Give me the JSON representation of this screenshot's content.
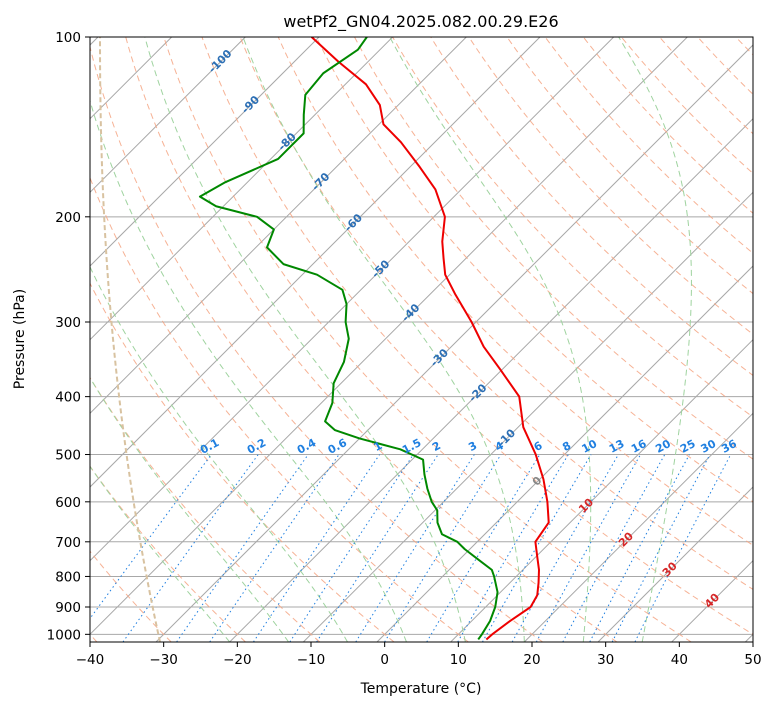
{
  "chart_data": {
    "type": "skew-t",
    "title": "wetPf2_GN04.2025.082.00.29.E26",
    "xlabel": "Temperature (°C)",
    "ylabel": "Pressure (hPa)",
    "xlim": [
      -40,
      50
    ],
    "ylim": [
      1030,
      100
    ],
    "y_scale": "log",
    "grid": true,
    "x_ticks": [
      "−40",
      "−30",
      "−20",
      "−10",
      "0",
      "10",
      "20",
      "30",
      "40",
      "50"
    ],
    "y_ticks": [
      {
        "p": 1000,
        "label": "1000"
      },
      {
        "p": 900,
        "label": "900"
      },
      {
        "p": 800,
        "label": "800"
      },
      {
        "p": 700,
        "label": "700"
      },
      {
        "p": 600,
        "label": "600"
      },
      {
        "p": 500,
        "label": "500"
      },
      {
        "p": 400,
        "label": "400"
      },
      {
        "p": 300,
        "label": "300"
      },
      {
        "p": 200,
        "label": "200"
      },
      {
        "p": 100,
        "label": "100"
      }
    ],
    "isotherm_labels": [
      {
        "t": -100,
        "label": "-100"
      },
      {
        "t": -90,
        "label": "-90"
      },
      {
        "t": -80,
        "label": "-80"
      },
      {
        "t": -70,
        "label": "-70"
      },
      {
        "t": -60,
        "label": "-60"
      },
      {
        "t": -50,
        "label": "-50"
      },
      {
        "t": -40,
        "label": "-40"
      },
      {
        "t": -30,
        "label": "-30"
      },
      {
        "t": -20,
        "label": "-20"
      },
      {
        "t": -10,
        "label": "-10"
      },
      {
        "t": 0,
        "label": "0"
      },
      {
        "t": 10,
        "label": "10"
      },
      {
        "t": 20,
        "label": "20"
      },
      {
        "t": 30,
        "label": "30"
      },
      {
        "t": 40,
        "label": "40"
      }
    ],
    "mixing_ratios": [
      {
        "w": 0.1,
        "label": "0.1"
      },
      {
        "w": 0.2,
        "label": "0.2"
      },
      {
        "w": 0.4,
        "label": "0.4"
      },
      {
        "w": 0.6,
        "label": "0.6"
      },
      {
        "w": 1,
        "label": "1"
      },
      {
        "w": 1.5,
        "label": "1.5"
      },
      {
        "w": 2,
        "label": "2"
      },
      {
        "w": 3,
        "label": "3"
      },
      {
        "w": 4,
        "label": "4"
      },
      {
        "w": 6,
        "label": "6"
      },
      {
        "w": 8,
        "label": "8"
      },
      {
        "w": 10,
        "label": "10"
      },
      {
        "w": 13,
        "label": "13"
      },
      {
        "w": 16,
        "label": "16"
      },
      {
        "w": 20,
        "label": "20"
      },
      {
        "w": 25,
        "label": "25"
      },
      {
        "w": 30,
        "label": "30"
      },
      {
        "w": 36,
        "label": "36"
      }
    ],
    "series": [
      {
        "color": "#ee0000",
        "points": [
          {
            "p": 1020,
            "t": 14.5
          },
          {
            "p": 1000,
            "t": 14.6
          },
          {
            "p": 950,
            "t": 15.2
          },
          {
            "p": 900,
            "t": 16.1
          },
          {
            "p": 860,
            "t": 15.4
          },
          {
            "p": 820,
            "t": 13.9
          },
          {
            "p": 780,
            "t": 12.2
          },
          {
            "p": 740,
            "t": 10.1
          },
          {
            "p": 700,
            "t": 7.9
          },
          {
            "p": 650,
            "t": 7.1
          },
          {
            "p": 600,
            "t": 4.1
          },
          {
            "p": 550,
            "t": 0.5
          },
          {
            "p": 500,
            "t": -3.9
          },
          {
            "p": 450,
            "t": -9.3
          },
          {
            "p": 400,
            "t": -14.0
          },
          {
            "p": 360,
            "t": -20.3
          },
          {
            "p": 330,
            "t": -25.6
          },
          {
            "p": 300,
            "t": -30.6
          },
          {
            "p": 270,
            "t": -36.5
          },
          {
            "p": 250,
            "t": -40.6
          },
          {
            "p": 235,
            "t": -43.0
          },
          {
            "p": 220,
            "t": -45.5
          },
          {
            "p": 200,
            "t": -48.5
          },
          {
            "p": 180,
            "t": -53.5
          },
          {
            "p": 165,
            "t": -58.7
          },
          {
            "p": 150,
            "t": -64.6
          },
          {
            "p": 140,
            "t": -69.4
          },
          {
            "p": 130,
            "t": -72.5
          },
          {
            "p": 120,
            "t": -77.2
          },
          {
            "p": 110,
            "t": -84.0
          },
          {
            "p": 100,
            "t": -91.0
          }
        ]
      },
      {
        "color": "#008800",
        "points": [
          {
            "p": 1020,
            "t": 13.4
          },
          {
            "p": 1000,
            "t": 13.2
          },
          {
            "p": 950,
            "t": 12.5
          },
          {
            "p": 900,
            "t": 11.3
          },
          {
            "p": 850,
            "t": 9.6
          },
          {
            "p": 800,
            "t": 7.0
          },
          {
            "p": 780,
            "t": 5.8
          },
          {
            "p": 750,
            "t": 2.6
          },
          {
            "p": 720,
            "t": -0.7
          },
          {
            "p": 700,
            "t": -2.7
          },
          {
            "p": 680,
            "t": -5.8
          },
          {
            "p": 650,
            "t": -8.0
          },
          {
            "p": 620,
            "t": -9.7
          },
          {
            "p": 600,
            "t": -11.6
          },
          {
            "p": 570,
            "t": -14.0
          },
          {
            "p": 540,
            "t": -16.3
          },
          {
            "p": 510,
            "t": -18.5
          },
          {
            "p": 490,
            "t": -23.0
          },
          {
            "p": 470,
            "t": -30.0
          },
          {
            "p": 455,
            "t": -34.5
          },
          {
            "p": 440,
            "t": -37.0
          },
          {
            "p": 410,
            "t": -38.5
          },
          {
            "p": 380,
            "t": -41.0
          },
          {
            "p": 350,
            "t": -42.5
          },
          {
            "p": 320,
            "t": -45.0
          },
          {
            "p": 300,
            "t": -47.7
          },
          {
            "p": 280,
            "t": -50.0
          },
          {
            "p": 265,
            "t": -52.5
          },
          {
            "p": 250,
            "t": -58.0
          },
          {
            "p": 240,
            "t": -64.0
          },
          {
            "p": 225,
            "t": -68.5
          },
          {
            "p": 210,
            "t": -70.0
          },
          {
            "p": 200,
            "t": -74.0
          },
          {
            "p": 192,
            "t": -81.0
          },
          {
            "p": 185,
            "t": -84.5
          },
          {
            "p": 175,
            "t": -83.0
          },
          {
            "p": 160,
            "t": -79.0
          },
          {
            "p": 145,
            "t": -79.0
          },
          {
            "p": 135,
            "t": -81.5
          },
          {
            "p": 125,
            "t": -84.0
          },
          {
            "p": 115,
            "t": -84.5
          },
          {
            "p": 105,
            "t": -83.0
          },
          {
            "p": 100,
            "t": -83.5
          }
        ]
      }
    ],
    "colors": {
      "isotherm": "#a8a8a8",
      "isobar": "#a8a8a8",
      "dry_adiabat": "#f4a582",
      "moist_adiabat": "#9fd39f",
      "mixing_ratio": "#1f7fe0",
      "iso_label_neg": "#2c6fb5",
      "iso_label_zero": "#888888",
      "iso_label_pos": "#d62728",
      "tan_curve": "#d8c2a0"
    }
  }
}
